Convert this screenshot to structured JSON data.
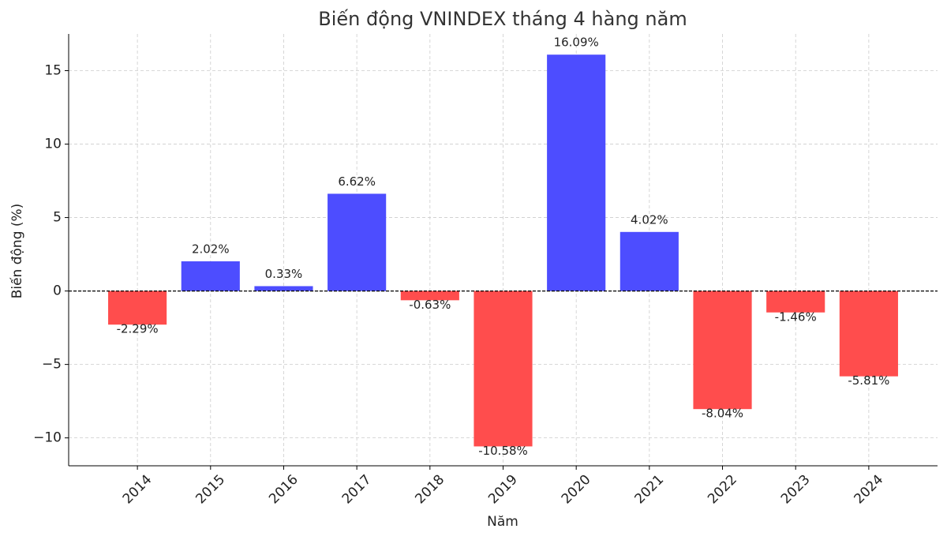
{
  "chart_data": {
    "type": "bar",
    "title": "Biến động VNINDEX tháng 4 hàng năm",
    "x_label": "Năm",
    "y_label": "Biến động (%)",
    "categories": [
      "2014",
      "2015",
      "2016",
      "2017",
      "2018",
      "2019",
      "2020",
      "2021",
      "2022",
      "2023",
      "2024"
    ],
    "values": [
      -2.29,
      2.02,
      0.33,
      6.62,
      -0.63,
      -10.58,
      16.09,
      4.02,
      -8.04,
      -1.46,
      -5.81
    ],
    "value_labels": [
      "-2.29%",
      "2.02%",
      "0.33%",
      "6.62%",
      "-0.63%",
      "-10.58%",
      "16.09%",
      "4.02%",
      "-8.04%",
      "-1.46%",
      "-5.81%"
    ],
    "colors": [
      "#ff4d4d",
      "#4d4dff",
      "#4d4dff",
      "#4d4dff",
      "#ff4d4d",
      "#ff4d4d",
      "#4d4dff",
      "#4d4dff",
      "#ff4d4d",
      "#ff4d4d",
      "#ff4d4d"
    ],
    "ylim": [
      -11.9,
      17.5
    ],
    "yticks": [
      {
        "value": -10,
        "label": "−10"
      },
      {
        "value": -5,
        "label": "−5"
      },
      0,
      5,
      10,
      15
    ],
    "grid": true,
    "zero_line": true
  }
}
